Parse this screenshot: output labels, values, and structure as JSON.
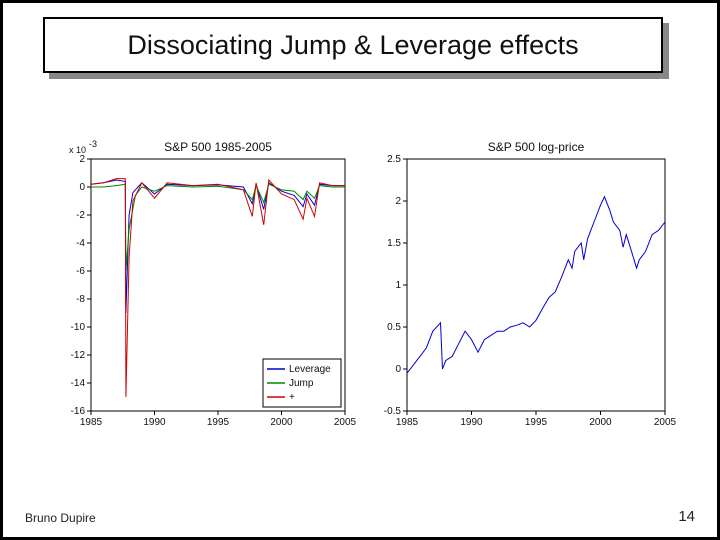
{
  "title": "Dissociating Jump & Leverage effects",
  "footer_author": "Bruno Dupire",
  "footer_page": "14",
  "chart_left": {
    "type": "line",
    "title": "S&P 500 1985-2005",
    "y_multiplier_label": "x 10",
    "y_multiplier_exp": "-3",
    "xlim": [
      1985,
      2005
    ],
    "xticks": [
      1985,
      1990,
      1995,
      2000,
      2005
    ],
    "ylim": [
      -16,
      2
    ],
    "yticks": [
      2,
      0,
      -2,
      -4,
      -6,
      -8,
      -10,
      -12,
      -14,
      -16
    ],
    "grid_color": "#ffffff",
    "axis_color": "#000000",
    "background_color": "#ffffff",
    "series": [
      {
        "name": "Leverage",
        "color": "#0000d0",
        "data": [
          [
            1985,
            0.2
          ],
          [
            1986,
            0.3
          ],
          [
            1987,
            0.5
          ],
          [
            1987.7,
            0.4
          ],
          [
            1987.75,
            -9
          ],
          [
            1988,
            -2
          ],
          [
            1988.3,
            -0.4
          ],
          [
            1989,
            0.3
          ],
          [
            1990,
            -0.5
          ],
          [
            1991,
            0.2
          ],
          [
            1993,
            0.1
          ],
          [
            1995,
            0.15
          ],
          [
            1997,
            0.0
          ],
          [
            1997.7,
            -1.2
          ],
          [
            1998,
            0.2
          ],
          [
            1998.6,
            -1.6
          ],
          [
            1999,
            0.3
          ],
          [
            2000,
            -0.3
          ],
          [
            2001,
            -0.6
          ],
          [
            2001.7,
            -1.4
          ],
          [
            2002,
            -0.5
          ],
          [
            2002.6,
            -1.3
          ],
          [
            2003,
            0.2
          ],
          [
            2004,
            0.1
          ],
          [
            2005,
            0.1
          ]
        ]
      },
      {
        "name": "Jump",
        "color": "#008800",
        "data": [
          [
            1985,
            0.0
          ],
          [
            1986,
            0.0
          ],
          [
            1987,
            0.1
          ],
          [
            1987.7,
            0.2
          ],
          [
            1987.75,
            -6
          ],
          [
            1988,
            -3
          ],
          [
            1988.5,
            -0.6
          ],
          [
            1989,
            0.0
          ],
          [
            1990,
            -0.3
          ],
          [
            1991,
            0.1
          ],
          [
            1993,
            0.0
          ],
          [
            1995,
            0.05
          ],
          [
            1997,
            -0.2
          ],
          [
            1997.7,
            -0.9
          ],
          [
            1998,
            0.1
          ],
          [
            1998.6,
            -1.1
          ],
          [
            1999,
            0.2
          ],
          [
            2000,
            -0.2
          ],
          [
            2001,
            -0.3
          ],
          [
            2001.7,
            -0.9
          ],
          [
            2002,
            -0.3
          ],
          [
            2002.6,
            -0.8
          ],
          [
            2003,
            0.1
          ],
          [
            2004,
            0.0
          ],
          [
            2005,
            0.0
          ]
        ]
      },
      {
        "name": "+",
        "color": "#d00000",
        "data": [
          [
            1985,
            0.2
          ],
          [
            1986,
            0.3
          ],
          [
            1987,
            0.6
          ],
          [
            1987.7,
            0.6
          ],
          [
            1987.75,
            -15
          ],
          [
            1988,
            -5
          ],
          [
            1988.3,
            -1.0
          ],
          [
            1989,
            0.3
          ],
          [
            1990,
            -0.8
          ],
          [
            1991,
            0.3
          ],
          [
            1993,
            0.1
          ],
          [
            1995,
            0.2
          ],
          [
            1997,
            -0.2
          ],
          [
            1997.7,
            -2.1
          ],
          [
            1998,
            0.3
          ],
          [
            1998.6,
            -2.7
          ],
          [
            1999,
            0.5
          ],
          [
            2000,
            -0.5
          ],
          [
            2001,
            -0.9
          ],
          [
            2001.7,
            -2.3
          ],
          [
            2002,
            -0.8
          ],
          [
            2002.6,
            -2.1
          ],
          [
            2003,
            0.3
          ],
          [
            2004,
            0.1
          ],
          [
            2005,
            0.1
          ]
        ]
      }
    ],
    "legend": {
      "position": "bottom-right",
      "box_color": "#000000",
      "labels": [
        "Leverage",
        "Jump",
        "+"
      ]
    },
    "line_width": 1
  },
  "chart_right": {
    "type": "line",
    "title": "S&P 500 log-price",
    "xlim": [
      1985,
      2005
    ],
    "xticks": [
      1985,
      1990,
      1995,
      2000,
      2005
    ],
    "ylim": [
      -0.5,
      2.5
    ],
    "yticks": [
      2.5,
      2,
      1.5,
      1,
      0.5,
      0,
      -0.5
    ],
    "axis_color": "#000000",
    "background_color": "#ffffff",
    "series": [
      {
        "name": "log-price",
        "color": "#0000d0",
        "data": [
          [
            1985,
            -0.05
          ],
          [
            1985.5,
            0.05
          ],
          [
            1986,
            0.15
          ],
          [
            1986.5,
            0.25
          ],
          [
            1987,
            0.45
          ],
          [
            1987.6,
            0.55
          ],
          [
            1987.75,
            0.0
          ],
          [
            1988,
            0.1
          ],
          [
            1988.5,
            0.15
          ],
          [
            1989,
            0.3
          ],
          [
            1989.5,
            0.45
          ],
          [
            1990,
            0.35
          ],
          [
            1990.5,
            0.2
          ],
          [
            1991,
            0.35
          ],
          [
            1991.5,
            0.4
          ],
          [
            1992,
            0.45
          ],
          [
            1992.5,
            0.45
          ],
          [
            1993,
            0.5
          ],
          [
            1993.5,
            0.52
          ],
          [
            1994,
            0.55
          ],
          [
            1994.5,
            0.5
          ],
          [
            1995,
            0.58
          ],
          [
            1995.5,
            0.72
          ],
          [
            1996,
            0.85
          ],
          [
            1996.5,
            0.92
          ],
          [
            1997,
            1.1
          ],
          [
            1997.5,
            1.3
          ],
          [
            1997.8,
            1.2
          ],
          [
            1998,
            1.4
          ],
          [
            1998.5,
            1.5
          ],
          [
            1998.7,
            1.3
          ],
          [
            1999,
            1.55
          ],
          [
            1999.5,
            1.75
          ],
          [
            2000,
            1.95
          ],
          [
            2000.3,
            2.05
          ],
          [
            2000.7,
            1.9
          ],
          [
            2001,
            1.75
          ],
          [
            2001.5,
            1.65
          ],
          [
            2001.75,
            1.45
          ],
          [
            2002,
            1.6
          ],
          [
            2002.5,
            1.35
          ],
          [
            2002.8,
            1.2
          ],
          [
            2003,
            1.3
          ],
          [
            2003.5,
            1.4
          ],
          [
            2004,
            1.6
          ],
          [
            2004.5,
            1.65
          ],
          [
            2005,
            1.75
          ]
        ]
      }
    ],
    "line_width": 1
  }
}
